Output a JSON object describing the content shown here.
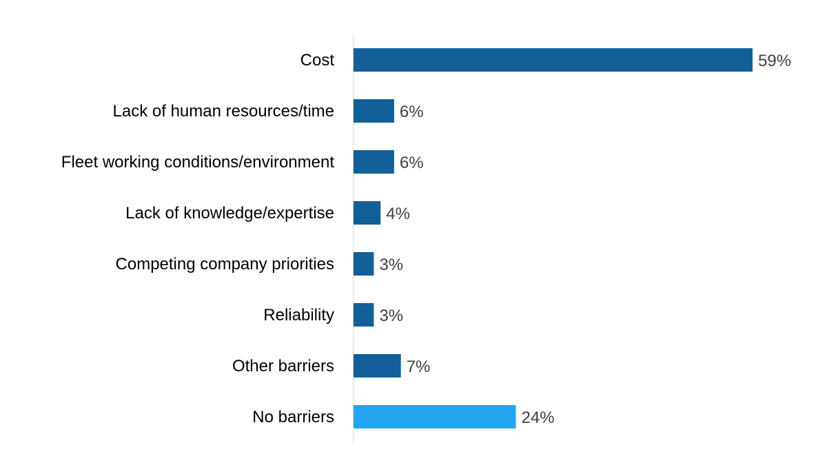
{
  "chart_data": {
    "type": "bar",
    "orientation": "horizontal",
    "categories": [
      "Cost",
      "Lack of human resources/time",
      "Fleet working conditions/environment",
      "Lack of knowledge/expertise",
      "Competing company priorities",
      "Reliability",
      "Other barriers",
      "No barriers"
    ],
    "values": [
      59,
      6,
      6,
      4,
      3,
      3,
      7,
      24
    ],
    "value_labels": [
      "59%",
      "6%",
      "6%",
      "4%",
      "3%",
      "3%",
      "7%",
      "24%"
    ],
    "unit": "%",
    "colors": [
      "#135f9a",
      "#135f9a",
      "#135f9a",
      "#135f9a",
      "#135f9a",
      "#135f9a",
      "#135f9a",
      "#23a6ef"
    ],
    "axis_color": "#d9d9d9",
    "xlim": [
      0,
      59
    ],
    "grid": false,
    "legend": "none",
    "title": "",
    "xlabel": "",
    "ylabel": ""
  }
}
